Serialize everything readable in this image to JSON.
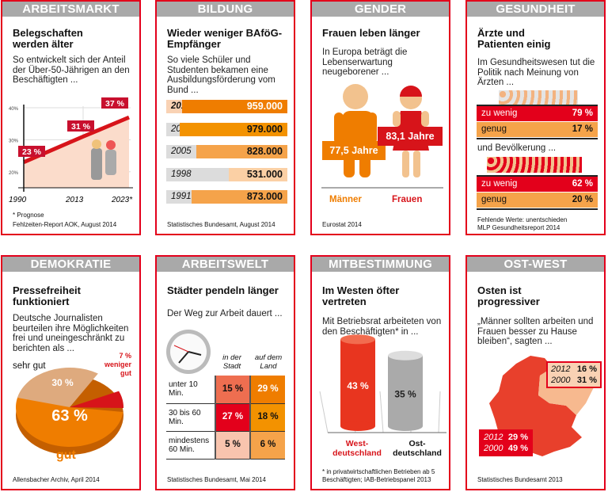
{
  "panels": [
    {
      "header": "ARBEITSMARKT",
      "title": "Belegschaften werden älter",
      "subtitle": "So entwickelt sich der Anteil der Über-50-Jährigen an den Beschäftigten ...",
      "source_note": "* Prognose",
      "source": "Fehlzeiten-Report AOK, August 2014"
    },
    {
      "header": "BILDUNG",
      "title": "Wieder weniger BAföG-Empfänger",
      "subtitle": "So viele Schüler und Studenten bekamen eine Ausbildungsförderung vom Bund ...",
      "source": "Statistisches Bundesamt, August 2014"
    },
    {
      "header": "GENDER",
      "title": "Frauen leben länger",
      "subtitle": "In Europa beträgt die Lebenserwartung neugeborener ...",
      "source": "Eurostat 2014"
    },
    {
      "header": "GESUNDHEIT",
      "title": "Ärzte und Patienten einig",
      "subtitle": "Im Gesundheitswesen tut die Politik nach Meinung von Ärzten ...",
      "subtitle2": "und Bevölkerung ...",
      "source_note": "Fehlende Werte: unentschieden",
      "source": "MLP Gesundheitsreport 2014"
    },
    {
      "header": "DEMOKRATIE",
      "title": "Pressefreiheit funktioniert",
      "subtitle": "Deutsche Journalisten beurteilen ihre Möglichkeiten frei und uneingeschränkt zu berichten als ...",
      "source": "Allensbacher Archiv, April 2014"
    },
    {
      "header": "ARBEITSWELT",
      "title": "Städter pendeln länger",
      "subtitle": "Der Weg zur Arbeit dauert ...",
      "source": "Statistisches Bundesamt, Mai 2014"
    },
    {
      "header": "MITBESTIMMUNG",
      "title": "Im Westen öfter vertreten",
      "subtitle": "Mit Betriebsrat arbeiteten von den Beschäftigten* in ...",
      "source": "* in privatwirtschaftlichen Betrieben ab 5 Beschäftigten; IAB-Betriebspanel 2013"
    },
    {
      "header": "OST-WEST",
      "title": "Osten ist progressiver",
      "subtitle": "„Männer sollten arbeiten und Frauen besser zu Hause bleiben“, sagten ...",
      "source": "Statistisches Bundesamt 2013"
    }
  ],
  "colors": {
    "red": "#e3001b",
    "orange": "#ef7d00",
    "light_orange": "#f5a34a",
    "peach": "#f9d2b4",
    "gray_header": "#a9a9a9"
  },
  "chart_data": [
    {
      "type": "line",
      "x": [
        "1990",
        "2013",
        "2023*"
      ],
      "values": [
        23,
        31,
        37
      ],
      "labels": [
        "23 %",
        "31 %",
        "37 %"
      ],
      "yticks": [
        "40%",
        "30%",
        "20%"
      ],
      "ylim": [
        15,
        40
      ]
    },
    {
      "type": "bar",
      "categories": [
        "2013",
        "2012",
        "2005",
        "1998",
        "1991"
      ],
      "values": [
        959000,
        979000,
        828000,
        531000,
        873000
      ],
      "labels": [
        "959.000",
        "979.000",
        "828.000",
        "531.000",
        "873.000"
      ]
    },
    {
      "type": "bar",
      "categories": [
        "Männer",
        "Frauen"
      ],
      "values": [
        77.5,
        83.1
      ],
      "labels": [
        "77,5 Jahre",
        "83,1 Jahre"
      ]
    },
    {
      "type": "bar",
      "groups": [
        {
          "name": "Ärzten",
          "rows": [
            {
              "label": "zu wenig",
              "value": 79,
              "text": "79 %"
            },
            {
              "label": "genug",
              "value": 17,
              "text": "17 %"
            }
          ]
        },
        {
          "name": "Bevölkerung",
          "rows": [
            {
              "label": "zu wenig",
              "value": 62,
              "text": "62 %"
            },
            {
              "label": "genug",
              "value": 20,
              "text": "20 %"
            }
          ]
        }
      ]
    },
    {
      "type": "pie",
      "slices": [
        {
          "name": "gut",
          "value": 63,
          "text": "63 %"
        },
        {
          "name": "sehr gut",
          "value": 30,
          "text": "30 %"
        },
        {
          "name": "weniger gut",
          "value": 7,
          "text": "7 %"
        }
      ]
    },
    {
      "type": "table",
      "columns": [
        "in der Stadt",
        "auf dem Land"
      ],
      "rows": [
        {
          "label": "unter 10 Min.",
          "values": [
            "15 %",
            "29 %"
          ]
        },
        {
          "label": "30 bis 60 Min.",
          "values": [
            "27 %",
            "18 %"
          ]
        },
        {
          "label": "mindestens 60 Min.",
          "values": [
            "5 %",
            "6 %"
          ]
        }
      ]
    },
    {
      "type": "bar",
      "categories": [
        "West-deutschland",
        "Ost-deutschland"
      ],
      "values": [
        43,
        35
      ],
      "labels": [
        "43 %",
        "35 %"
      ]
    },
    {
      "type": "table",
      "regions": [
        {
          "name": "Ost",
          "rows": [
            {
              "year": "2012",
              "value": "16 %"
            },
            {
              "year": "2000",
              "value": "31 %"
            }
          ]
        },
        {
          "name": "West",
          "rows": [
            {
              "year": "2012",
              "value": "29 %"
            },
            {
              "year": "2000",
              "value": "49 %"
            }
          ]
        }
      ]
    }
  ]
}
